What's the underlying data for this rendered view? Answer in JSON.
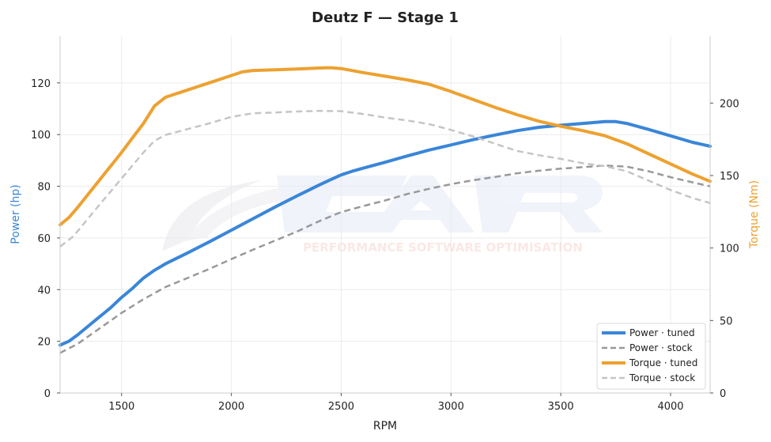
{
  "chart_data": {
    "type": "line",
    "title": "Deutz F — Stage 1",
    "xlabel": "RPM",
    "ylabel": "Power (hp)",
    "y2label": "Torque (Nm)",
    "xlim": [
      1220,
      4180
    ],
    "ylim": [
      0,
      138
    ],
    "y2lim": [
      0,
      246
    ],
    "xticks": [
      1500,
      2000,
      2500,
      3000,
      3500,
      4000
    ],
    "yticks": [
      0,
      20,
      40,
      60,
      80,
      100,
      120
    ],
    "y2ticks": [
      0,
      50,
      100,
      150,
      200
    ],
    "grid": true,
    "legend_position": "bottom-right",
    "watermark": "PERFORMANCE SOFTWARE OPTIMISATION",
    "series": [
      {
        "name": "Power · tuned",
        "axis": "left",
        "color": "#3a86d8",
        "style": "solid",
        "points": [
          [
            1220,
            18.5
          ],
          [
            1260,
            20
          ],
          [
            1300,
            22.5
          ],
          [
            1350,
            26
          ],
          [
            1400,
            29.5
          ],
          [
            1450,
            33
          ],
          [
            1500,
            37
          ],
          [
            1550,
            40.5
          ],
          [
            1600,
            44.5
          ],
          [
            1650,
            47.5
          ],
          [
            1700,
            50
          ],
          [
            1800,
            54.2
          ],
          [
            1900,
            58.5
          ],
          [
            2000,
            63
          ],
          [
            2100,
            67.5
          ],
          [
            2200,
            72
          ],
          [
            2300,
            76.3
          ],
          [
            2400,
            80.5
          ],
          [
            2450,
            82.5
          ],
          [
            2500,
            84.4
          ],
          [
            2550,
            85.8
          ],
          [
            2600,
            87
          ],
          [
            2700,
            89.3
          ],
          [
            2800,
            91.7
          ],
          [
            2900,
            94
          ],
          [
            3000,
            96
          ],
          [
            3100,
            98
          ],
          [
            3200,
            99.8
          ],
          [
            3300,
            101.5
          ],
          [
            3400,
            102.8
          ],
          [
            3500,
            103.6
          ],
          [
            3600,
            104.3
          ],
          [
            3700,
            105
          ],
          [
            3750,
            105
          ],
          [
            3800,
            104.3
          ],
          [
            3900,
            102
          ],
          [
            4000,
            99.5
          ],
          [
            4100,
            97
          ],
          [
            4180,
            95.5
          ]
        ]
      },
      {
        "name": "Power · stock",
        "axis": "left",
        "color": "#999999",
        "style": "dashed",
        "points": [
          [
            1220,
            15.5
          ],
          [
            1300,
            19
          ],
          [
            1400,
            25
          ],
          [
            1500,
            31
          ],
          [
            1600,
            36.3
          ],
          [
            1700,
            41
          ],
          [
            1800,
            44.5
          ],
          [
            1900,
            48
          ],
          [
            2000,
            51.8
          ],
          [
            2100,
            55.5
          ],
          [
            2200,
            59
          ],
          [
            2300,
            62.5
          ],
          [
            2400,
            66.5
          ],
          [
            2500,
            70
          ],
          [
            2600,
            72.3
          ],
          [
            2700,
            74.5
          ],
          [
            2800,
            77
          ],
          [
            2900,
            79
          ],
          [
            3000,
            80.8
          ],
          [
            3100,
            82.3
          ],
          [
            3200,
            83.6
          ],
          [
            3300,
            85
          ],
          [
            3400,
            86
          ],
          [
            3500,
            86.8
          ],
          [
            3600,
            87.4
          ],
          [
            3700,
            88
          ],
          [
            3800,
            87.6
          ],
          [
            3900,
            85.8
          ],
          [
            4000,
            83.5
          ],
          [
            4100,
            81.5
          ],
          [
            4180,
            80
          ]
        ]
      },
      {
        "name": "Torque · tuned",
        "axis": "right",
        "color": "#eda130",
        "style": "solid",
        "points": [
          [
            1220,
            116
          ],
          [
            1260,
            121
          ],
          [
            1300,
            128
          ],
          [
            1400,
            147
          ],
          [
            1500,
            166
          ],
          [
            1550,
            176
          ],
          [
            1600,
            186
          ],
          [
            1650,
            198
          ],
          [
            1700,
            204
          ],
          [
            1800,
            209
          ],
          [
            1900,
            214
          ],
          [
            2000,
            219
          ],
          [
            2050,
            221.5
          ],
          [
            2100,
            222.5
          ],
          [
            2200,
            223
          ],
          [
            2300,
            223.5
          ],
          [
            2400,
            224.2
          ],
          [
            2450,
            224.4
          ],
          [
            2500,
            223.8
          ],
          [
            2600,
            221
          ],
          [
            2700,
            218.5
          ],
          [
            2800,
            216
          ],
          [
            2900,
            213
          ],
          [
            3000,
            208
          ],
          [
            3100,
            202.5
          ],
          [
            3200,
            197
          ],
          [
            3300,
            192
          ],
          [
            3400,
            187.5
          ],
          [
            3500,
            184
          ],
          [
            3600,
            181
          ],
          [
            3700,
            177.5
          ],
          [
            3800,
            172
          ],
          [
            3900,
            165
          ],
          [
            4000,
            158
          ],
          [
            4100,
            151
          ],
          [
            4180,
            146
          ]
        ]
      },
      {
        "name": "Torque · stock",
        "axis": "right",
        "color": "#c5c5c5",
        "style": "dashed",
        "points": [
          [
            1220,
            101
          ],
          [
            1280,
            108
          ],
          [
            1400,
            130
          ],
          [
            1500,
            148
          ],
          [
            1600,
            166
          ],
          [
            1650,
            174
          ],
          [
            1700,
            178
          ],
          [
            1800,
            182
          ],
          [
            1900,
            186
          ],
          [
            2000,
            190.5
          ],
          [
            2100,
            193
          ],
          [
            2200,
            193.5
          ],
          [
            2300,
            194.2
          ],
          [
            2400,
            194.6
          ],
          [
            2500,
            194.4
          ],
          [
            2600,
            192.5
          ],
          [
            2700,
            190
          ],
          [
            2800,
            188
          ],
          [
            2900,
            185.5
          ],
          [
            3000,
            181.5
          ],
          [
            3100,
            177
          ],
          [
            3200,
            172
          ],
          [
            3300,
            167
          ],
          [
            3400,
            164
          ],
          [
            3500,
            161.5
          ],
          [
            3600,
            158.5
          ],
          [
            3700,
            156.5
          ],
          [
            3800,
            153
          ],
          [
            3900,
            146.5
          ],
          [
            4000,
            140
          ],
          [
            4100,
            134.5
          ],
          [
            4180,
            131
          ]
        ]
      }
    ]
  }
}
